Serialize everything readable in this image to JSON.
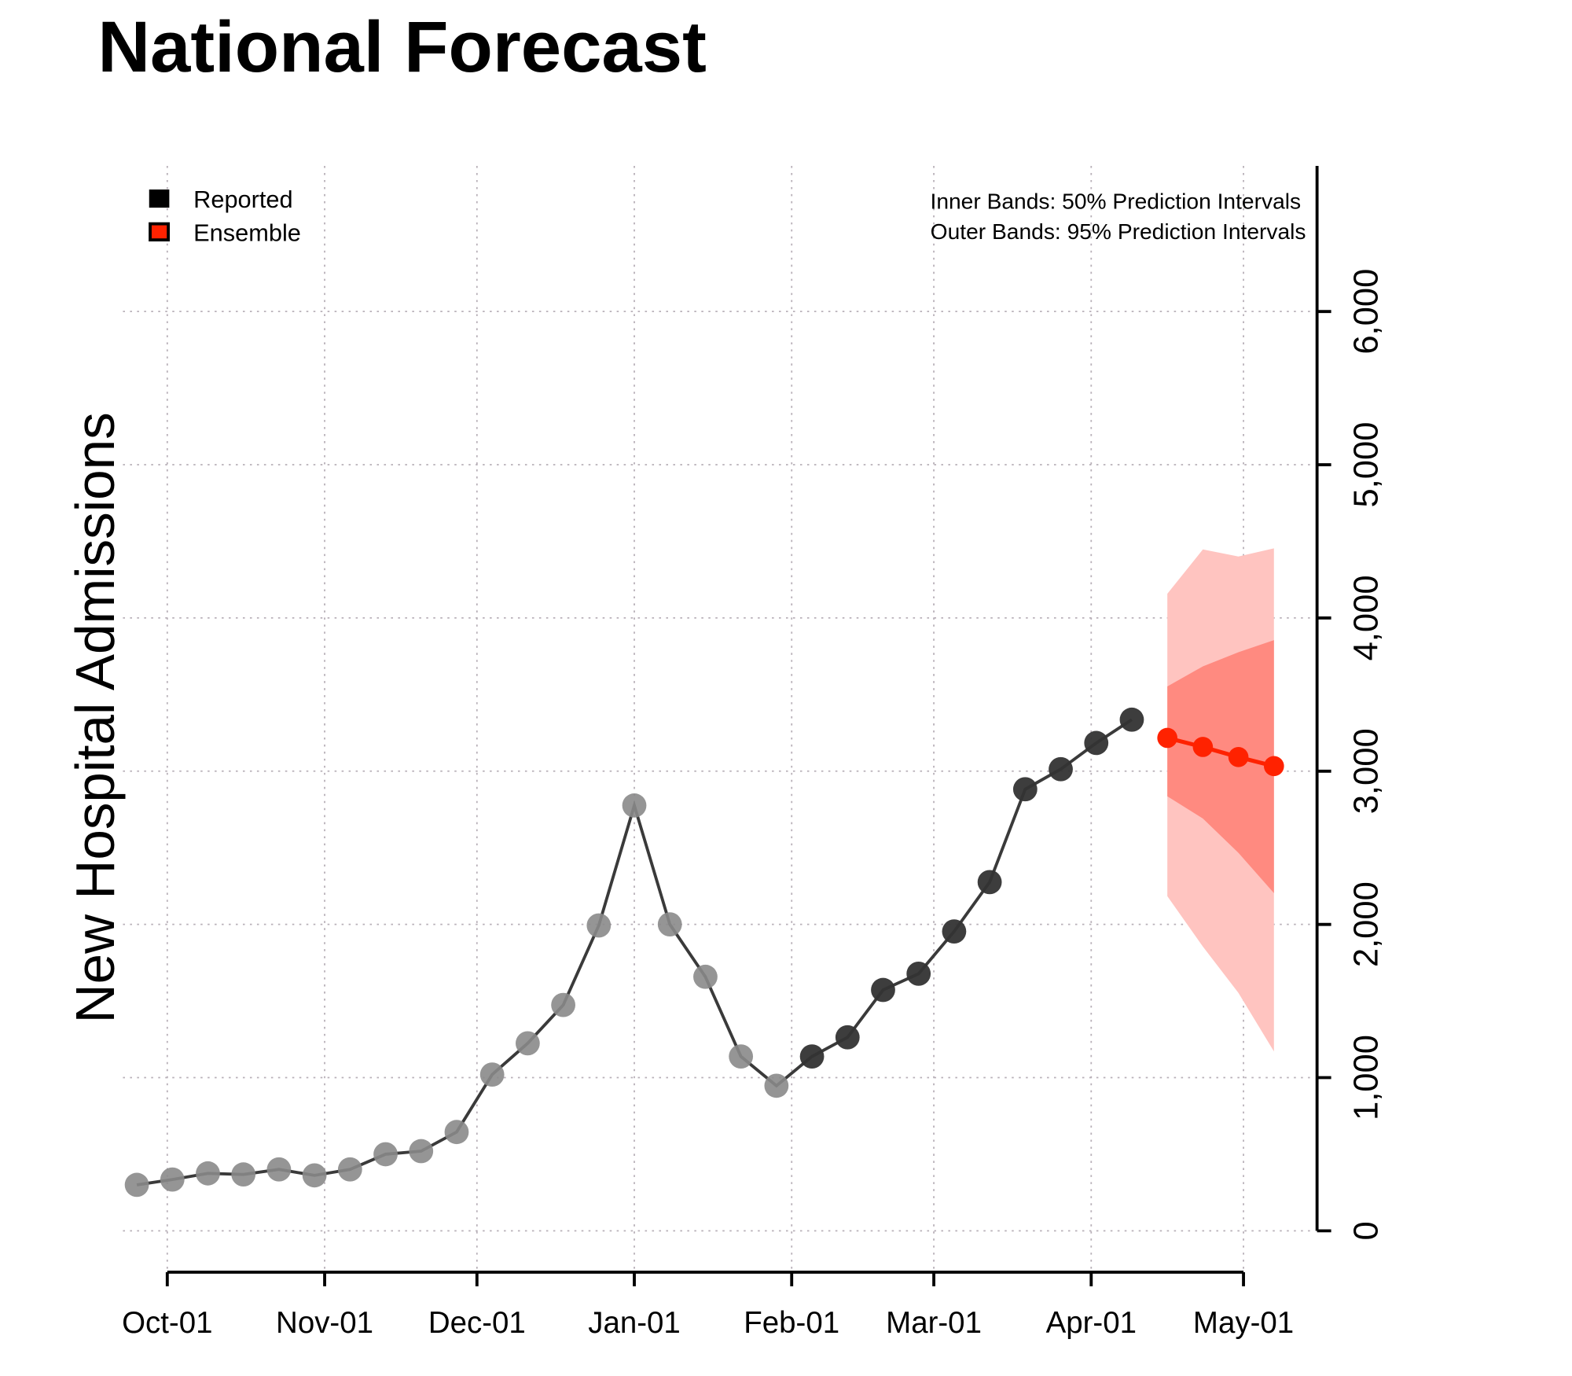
{
  "chart_data": {
    "type": "line",
    "title": "National Forecast",
    "ylabel": "New Hospital Admissions",
    "xlabel": "",
    "ylim": [
      -200,
      6950
    ],
    "y_ticks": [
      0,
      1000,
      2000,
      3000,
      4000,
      5000,
      6000
    ],
    "y_tick_labels": [
      "0",
      "1,000",
      "2,000",
      "3,000",
      "4,000",
      "5,000",
      "6,000"
    ],
    "x_ticks": [
      "2021-10-01",
      "2021-11-01",
      "2021-12-01",
      "2022-01-01",
      "2022-02-01",
      "2022-03-01",
      "2022-04-01",
      "2022-05-01"
    ],
    "x_tick_labels": [
      "Oct-01",
      "Nov-01",
      "Dec-01",
      "Jan-01",
      "Feb-01",
      "Mar-01",
      "Apr-01",
      "May-01"
    ],
    "grid": true,
    "y_axis_side": "right",
    "legend": {
      "placement": "top-left",
      "entries": [
        {
          "label": "Reported",
          "color": "#000000"
        },
        {
          "label": "Ensemble",
          "color": "#ff2200"
        }
      ]
    },
    "annotations": [
      "Inner Bands: 50% Prediction Intervals",
      "Outer Bands: 95% Prediction Intervals"
    ],
    "colors": {
      "reported_early": "#8a8a8a",
      "reported_recent": "#333333",
      "line": "#3a3a3a",
      "ensemble": "#ff2200",
      "band_50": "#ff8a80",
      "band_95": "#ffc4c0"
    },
    "series": [
      {
        "name": "Reported",
        "x": [
          "2021-09-25",
          "2021-10-02",
          "2021-10-09",
          "2021-10-16",
          "2021-10-23",
          "2021-10-30",
          "2021-11-06",
          "2021-11-13",
          "2021-11-20",
          "2021-11-27",
          "2021-12-04",
          "2021-12-11",
          "2021-12-18",
          "2021-12-25",
          "2022-01-01",
          "2022-01-08",
          "2022-01-15",
          "2022-01-22",
          "2022-01-29",
          "2022-02-05",
          "2022-02-12",
          "2022-02-19",
          "2022-02-26",
          "2022-03-05",
          "2022-03-12",
          "2022-03-19",
          "2022-03-26",
          "2022-04-02",
          "2022-04-09"
        ],
        "values": [
          300,
          335,
          375,
          368,
          401,
          362,
          401,
          500,
          520,
          645,
          1020,
          1224,
          1474,
          1993,
          2776,
          2000,
          1658,
          1138,
          947,
          1138,
          1263,
          1572,
          1678,
          1954,
          2276,
          2882,
          3013,
          3184,
          3336
        ],
        "recent_from": "2022-02-05"
      },
      {
        "name": "Ensemble",
        "x": [
          "2022-04-16",
          "2022-04-23",
          "2022-04-30",
          "2022-05-07"
        ],
        "values": [
          3217,
          3158,
          3092,
          3033
        ],
        "lower_50": [
          2836,
          2691,
          2467,
          2204
        ],
        "upper_50": [
          3553,
          3684,
          3776,
          3855
        ],
        "lower_95": [
          2184,
          1855,
          1553,
          1171
        ],
        "upper_95": [
          4158,
          4447,
          4401,
          4454
        ]
      }
    ]
  }
}
